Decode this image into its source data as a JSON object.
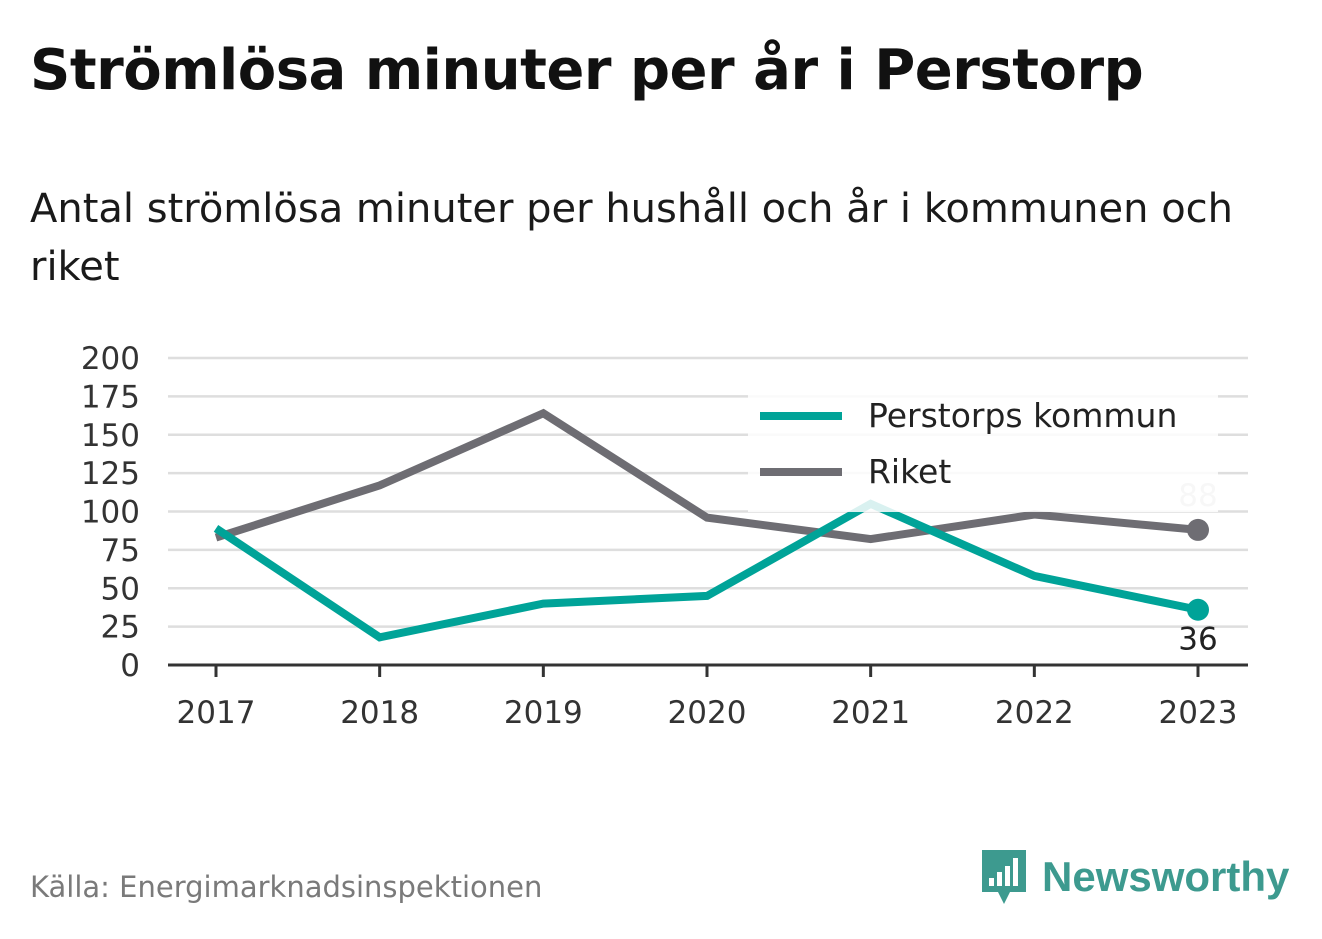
{
  "title": "Strömlösa minuter per år i Perstorp",
  "subtitle": "Antal strömlösa minuter per hushåll och år i kommunen och riket",
  "source": "Källa: Energimarknadsinspektionen",
  "brand": {
    "name": "Newsworthy",
    "icon": "newsworthy-logo-icon",
    "color": "#3d9a8f"
  },
  "chart_data": {
    "type": "line",
    "categories": [
      "2017",
      "2018",
      "2019",
      "2020",
      "2021",
      "2022",
      "2023"
    ],
    "series": [
      {
        "name": "Perstorps kommun",
        "color": "#00a398",
        "values": [
          89,
          18,
          40,
          45,
          105,
          58,
          36
        ],
        "end_label": "36"
      },
      {
        "name": "Riket",
        "color": "#6e6d73",
        "values": [
          83,
          117,
          164,
          96,
          82,
          98,
          88
        ],
        "end_label": "88"
      }
    ],
    "ylim": [
      0,
      200
    ],
    "yticks": [
      "0",
      "25",
      "50",
      "75",
      "100",
      "125",
      "150",
      "175",
      "200"
    ],
    "grid": true,
    "legend_position": "top-right"
  }
}
